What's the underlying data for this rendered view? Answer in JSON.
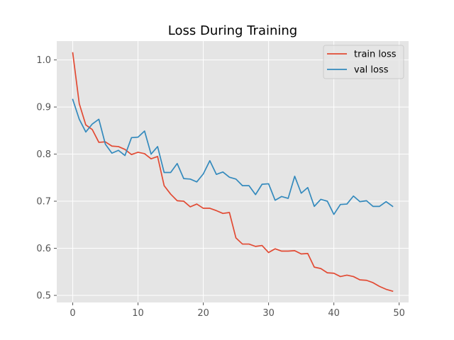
{
  "chart_data": {
    "type": "line",
    "title": "Loss During Training",
    "xlabel": "",
    "ylabel": "",
    "xlim": [
      -2.45,
      51.45
    ],
    "ylim": [
      0.485,
      1.04
    ],
    "xticks": [
      0,
      10,
      20,
      30,
      40,
      50
    ],
    "yticks": [
      0.5,
      0.6,
      0.7,
      0.8,
      0.9,
      1.0
    ],
    "xtick_labels": [
      "0",
      "10",
      "20",
      "30",
      "40",
      "50"
    ],
    "ytick_labels": [
      "0.5",
      "0.6",
      "0.7",
      "0.8",
      "0.9",
      "1.0"
    ],
    "grid": true,
    "legend_position": "top-right",
    "x": [
      0,
      1,
      2,
      3,
      4,
      5,
      6,
      7,
      8,
      9,
      10,
      11,
      12,
      13,
      14,
      15,
      16,
      17,
      18,
      19,
      20,
      21,
      22,
      23,
      24,
      25,
      26,
      27,
      28,
      29,
      30,
      31,
      32,
      33,
      34,
      35,
      36,
      37,
      38,
      39,
      40,
      41,
      42,
      43,
      44,
      45,
      46,
      47,
      48,
      49
    ],
    "series": [
      {
        "name": "train loss",
        "color": "#e24a33",
        "values": [
          1.015,
          0.907,
          0.862,
          0.852,
          0.825,
          0.826,
          0.817,
          0.816,
          0.81,
          0.799,
          0.804,
          0.801,
          0.79,
          0.795,
          0.733,
          0.715,
          0.701,
          0.7,
          0.688,
          0.694,
          0.685,
          0.685,
          0.68,
          0.674,
          0.676,
          0.622,
          0.609,
          0.609,
          0.604,
          0.606,
          0.591,
          0.599,
          0.594,
          0.594,
          0.595,
          0.588,
          0.589,
          0.56,
          0.557,
          0.548,
          0.547,
          0.54,
          0.543,
          0.54,
          0.533,
          0.532,
          0.527,
          0.519,
          0.513,
          0.509
        ]
      },
      {
        "name": "val loss",
        "color": "#348abd",
        "values": [
          0.916,
          0.874,
          0.847,
          0.864,
          0.874,
          0.821,
          0.802,
          0.808,
          0.797,
          0.835,
          0.836,
          0.849,
          0.8,
          0.816,
          0.761,
          0.761,
          0.78,
          0.748,
          0.747,
          0.741,
          0.758,
          0.786,
          0.757,
          0.762,
          0.751,
          0.747,
          0.733,
          0.733,
          0.714,
          0.736,
          0.737,
          0.702,
          0.71,
          0.706,
          0.753,
          0.717,
          0.729,
          0.689,
          0.704,
          0.7,
          0.672,
          0.693,
          0.694,
          0.711,
          0.699,
          0.701,
          0.689,
          0.689,
          0.699,
          0.689
        ]
      }
    ]
  }
}
